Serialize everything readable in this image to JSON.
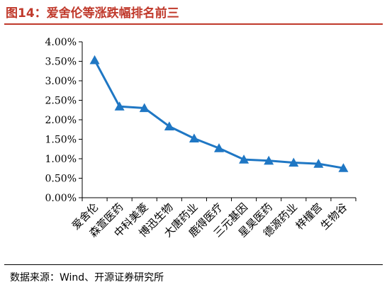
{
  "header": {
    "title": "图14：爱舍伦等涨跌幅排名前三"
  },
  "footer": {
    "source": "数据来源：Wind、开源证券研究所"
  },
  "chart_data": {
    "type": "line",
    "title": "",
    "xlabel": "",
    "ylabel": "",
    "categories": [
      "爱舍伦",
      "森萱医药",
      "中科美菱",
      "博迅生物",
      "大唐药业",
      "鹿得医疗",
      "三元基因",
      "星昊医药",
      "德源药业",
      "梓橦宫",
      "生物谷"
    ],
    "series": [
      {
        "values": [
          3.53,
          2.34,
          2.3,
          1.83,
          1.52,
          1.27,
          0.98,
          0.95,
          0.9,
          0.87,
          0.76
        ]
      }
    ],
    "ylim": [
      0,
      4
    ],
    "ytick_step": 0.5,
    "ytick_format": "percent-2dp",
    "grid": false,
    "legend": "none",
    "marker": "triangle",
    "colors": {
      "line": "#1f77c4",
      "axis": "#000000"
    }
  }
}
